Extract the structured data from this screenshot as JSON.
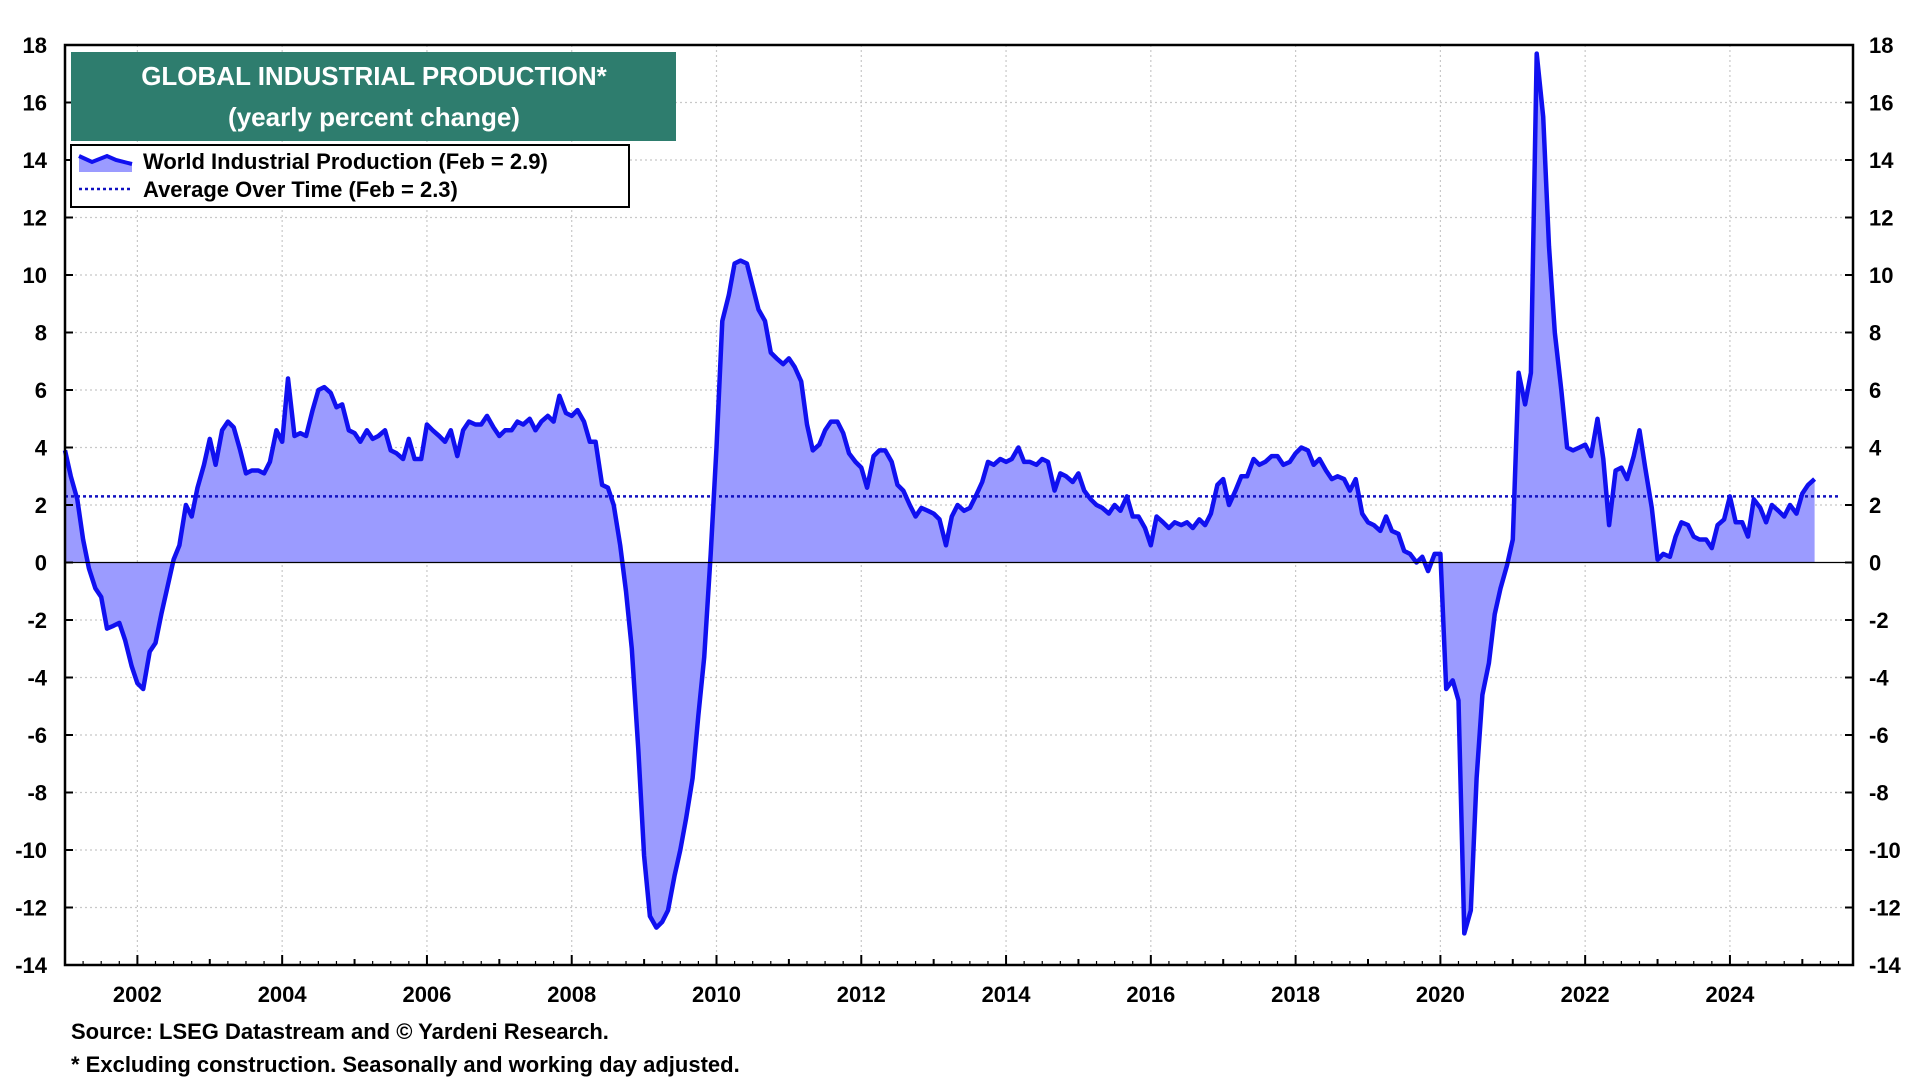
{
  "chart_data": {
    "type": "area",
    "title": "GLOBAL INDUSTRIAL PRODUCTION*",
    "subtitle": "(yearly percent change)",
    "ylim": [
      -14,
      18
    ],
    "y_ticks": [
      18,
      16,
      14,
      12,
      10,
      8,
      6,
      4,
      2,
      0,
      -2,
      -4,
      -6,
      -8,
      -10,
      -12,
      -14
    ],
    "xlim": [
      2001.0,
      2025.7
    ],
    "x_ticks": [
      2002,
      2004,
      2006,
      2008,
      2010,
      2012,
      2014,
      2016,
      2018,
      2020,
      2022,
      2024
    ],
    "grid": true,
    "legend_position": "top-left",
    "colors": {
      "series": "#1010f0",
      "fill": "#9b9bff",
      "average": "#1010c0",
      "title_box": "#2e7d6e",
      "title_text": "#ffffff"
    },
    "legend": [
      {
        "label": "World Industrial Production (Feb = 2.9)"
      },
      {
        "label": "Average Over Time (Feb = 2.3)"
      }
    ],
    "average": 2.3,
    "series": [
      {
        "name": "World Industrial Production (Feb = 2.9)",
        "points": [
          [
            2001.0,
            3.9
          ],
          [
            2001.08,
            3.0
          ],
          [
            2001.17,
            2.2
          ],
          [
            2001.25,
            0.8
          ],
          [
            2001.33,
            -0.2
          ],
          [
            2001.42,
            -0.9
          ],
          [
            2001.5,
            -1.2
          ],
          [
            2001.58,
            -2.3
          ],
          [
            2001.67,
            -2.2
          ],
          [
            2001.75,
            -2.1
          ],
          [
            2001.83,
            -2.7
          ],
          [
            2001.92,
            -3.6
          ],
          [
            2002.0,
            -4.2
          ],
          [
            2002.08,
            -4.4
          ],
          [
            2002.17,
            -3.1
          ],
          [
            2002.25,
            -2.8
          ],
          [
            2002.33,
            -1.8
          ],
          [
            2002.42,
            -0.8
          ],
          [
            2002.5,
            0.1
          ],
          [
            2002.58,
            0.6
          ],
          [
            2002.67,
            2.0
          ],
          [
            2002.75,
            1.6
          ],
          [
            2002.83,
            2.6
          ],
          [
            2002.92,
            3.4
          ],
          [
            2003.0,
            4.3
          ],
          [
            2003.08,
            3.4
          ],
          [
            2003.17,
            4.6
          ],
          [
            2003.25,
            4.9
          ],
          [
            2003.33,
            4.7
          ],
          [
            2003.42,
            3.9
          ],
          [
            2003.5,
            3.1
          ],
          [
            2003.58,
            3.2
          ],
          [
            2003.67,
            3.2
          ],
          [
            2003.75,
            3.1
          ],
          [
            2003.83,
            3.5
          ],
          [
            2003.92,
            4.6
          ],
          [
            2004.0,
            4.2
          ],
          [
            2004.08,
            6.4
          ],
          [
            2004.17,
            4.4
          ],
          [
            2004.25,
            4.5
          ],
          [
            2004.33,
            4.4
          ],
          [
            2004.42,
            5.3
          ],
          [
            2004.5,
            6.0
          ],
          [
            2004.58,
            6.1
          ],
          [
            2004.67,
            5.9
          ],
          [
            2004.75,
            5.4
          ],
          [
            2004.83,
            5.5
          ],
          [
            2004.92,
            4.6
          ],
          [
            2005.0,
            4.5
          ],
          [
            2005.08,
            4.2
          ],
          [
            2005.17,
            4.6
          ],
          [
            2005.25,
            4.3
          ],
          [
            2005.33,
            4.4
          ],
          [
            2005.42,
            4.6
          ],
          [
            2005.5,
            3.9
          ],
          [
            2005.58,
            3.8
          ],
          [
            2005.67,
            3.6
          ],
          [
            2005.75,
            4.3
          ],
          [
            2005.83,
            3.6
          ],
          [
            2005.92,
            3.6
          ],
          [
            2006.0,
            4.8
          ],
          [
            2006.08,
            4.6
          ],
          [
            2006.17,
            4.4
          ],
          [
            2006.25,
            4.2
          ],
          [
            2006.33,
            4.6
          ],
          [
            2006.42,
            3.7
          ],
          [
            2006.5,
            4.6
          ],
          [
            2006.58,
            4.9
          ],
          [
            2006.67,
            4.8
          ],
          [
            2006.75,
            4.8
          ],
          [
            2006.83,
            5.1
          ],
          [
            2006.92,
            4.7
          ],
          [
            2007.0,
            4.4
          ],
          [
            2007.08,
            4.6
          ],
          [
            2007.17,
            4.6
          ],
          [
            2007.25,
            4.9
          ],
          [
            2007.33,
            4.8
          ],
          [
            2007.42,
            5.0
          ],
          [
            2007.5,
            4.6
          ],
          [
            2007.58,
            4.9
          ],
          [
            2007.67,
            5.1
          ],
          [
            2007.75,
            4.9
          ],
          [
            2007.83,
            5.8
          ],
          [
            2007.92,
            5.2
          ],
          [
            2008.0,
            5.1
          ],
          [
            2008.08,
            5.3
          ],
          [
            2008.17,
            4.9
          ],
          [
            2008.25,
            4.2
          ],
          [
            2008.33,
            4.2
          ],
          [
            2008.42,
            2.7
          ],
          [
            2008.5,
            2.6
          ],
          [
            2008.58,
            2.0
          ],
          [
            2008.67,
            0.6
          ],
          [
            2008.75,
            -1.0
          ],
          [
            2008.83,
            -3.0
          ],
          [
            2008.92,
            -6.5
          ],
          [
            2009.0,
            -10.2
          ],
          [
            2009.08,
            -12.3
          ],
          [
            2009.17,
            -12.7
          ],
          [
            2009.25,
            -12.5
          ],
          [
            2009.33,
            -12.1
          ],
          [
            2009.42,
            -10.9
          ],
          [
            2009.5,
            -10.0
          ],
          [
            2009.58,
            -8.9
          ],
          [
            2009.67,
            -7.5
          ],
          [
            2009.75,
            -5.3
          ],
          [
            2009.83,
            -3.3
          ],
          [
            2009.92,
            0.3
          ],
          [
            2010.0,
            4.0
          ],
          [
            2010.08,
            8.4
          ],
          [
            2010.17,
            9.3
          ],
          [
            2010.25,
            10.4
          ],
          [
            2010.33,
            10.5
          ],
          [
            2010.42,
            10.4
          ],
          [
            2010.5,
            9.6
          ],
          [
            2010.58,
            8.8
          ],
          [
            2010.67,
            8.4
          ],
          [
            2010.75,
            7.3
          ],
          [
            2010.83,
            7.1
          ],
          [
            2010.92,
            6.9
          ],
          [
            2011.0,
            7.1
          ],
          [
            2011.08,
            6.8
          ],
          [
            2011.17,
            6.3
          ],
          [
            2011.25,
            4.8
          ],
          [
            2011.33,
            3.9
          ],
          [
            2011.42,
            4.1
          ],
          [
            2011.5,
            4.6
          ],
          [
            2011.58,
            4.9
          ],
          [
            2011.67,
            4.9
          ],
          [
            2011.75,
            4.5
          ],
          [
            2011.83,
            3.8
          ],
          [
            2011.92,
            3.5
          ],
          [
            2012.0,
            3.3
          ],
          [
            2012.08,
            2.6
          ],
          [
            2012.17,
            3.7
          ],
          [
            2012.25,
            3.9
          ],
          [
            2012.33,
            3.9
          ],
          [
            2012.42,
            3.5
          ],
          [
            2012.5,
            2.7
          ],
          [
            2012.58,
            2.5
          ],
          [
            2012.67,
            2.0
          ],
          [
            2012.75,
            1.6
          ],
          [
            2012.83,
            1.9
          ],
          [
            2012.92,
            1.8
          ],
          [
            2013.0,
            1.7
          ],
          [
            2013.08,
            1.5
          ],
          [
            2013.17,
            0.6
          ],
          [
            2013.25,
            1.6
          ],
          [
            2013.33,
            2.0
          ],
          [
            2013.42,
            1.8
          ],
          [
            2013.5,
            1.9
          ],
          [
            2013.58,
            2.3
          ],
          [
            2013.67,
            2.8
          ],
          [
            2013.75,
            3.5
          ],
          [
            2013.83,
            3.4
          ],
          [
            2013.92,
            3.6
          ],
          [
            2014.0,
            3.5
          ],
          [
            2014.08,
            3.6
          ],
          [
            2014.17,
            4.0
          ],
          [
            2014.25,
            3.5
          ],
          [
            2014.33,
            3.5
          ],
          [
            2014.42,
            3.4
          ],
          [
            2014.5,
            3.6
          ],
          [
            2014.58,
            3.5
          ],
          [
            2014.67,
            2.5
          ],
          [
            2014.75,
            3.1
          ],
          [
            2014.83,
            3.0
          ],
          [
            2014.92,
            2.8
          ],
          [
            2015.0,
            3.1
          ],
          [
            2015.08,
            2.5
          ],
          [
            2015.17,
            2.2
          ],
          [
            2015.25,
            2.0
          ],
          [
            2015.33,
            1.9
          ],
          [
            2015.42,
            1.7
          ],
          [
            2015.5,
            2.0
          ],
          [
            2015.58,
            1.8
          ],
          [
            2015.67,
            2.3
          ],
          [
            2015.75,
            1.6
          ],
          [
            2015.83,
            1.6
          ],
          [
            2015.92,
            1.2
          ],
          [
            2016.0,
            0.6
          ],
          [
            2016.08,
            1.6
          ],
          [
            2016.17,
            1.4
          ],
          [
            2016.25,
            1.2
          ],
          [
            2016.33,
            1.4
          ],
          [
            2016.42,
            1.3
          ],
          [
            2016.5,
            1.4
          ],
          [
            2016.58,
            1.2
          ],
          [
            2016.67,
            1.5
          ],
          [
            2016.75,
            1.3
          ],
          [
            2016.83,
            1.7
          ],
          [
            2016.92,
            2.7
          ],
          [
            2017.0,
            2.9
          ],
          [
            2017.08,
            2.0
          ],
          [
            2017.17,
            2.5
          ],
          [
            2017.25,
            3.0
          ],
          [
            2017.33,
            3.0
          ],
          [
            2017.42,
            3.6
          ],
          [
            2017.5,
            3.4
          ],
          [
            2017.58,
            3.5
          ],
          [
            2017.67,
            3.7
          ],
          [
            2017.75,
            3.7
          ],
          [
            2017.83,
            3.4
          ],
          [
            2017.92,
            3.5
          ],
          [
            2018.0,
            3.8
          ],
          [
            2018.08,
            4.0
          ],
          [
            2018.17,
            3.9
          ],
          [
            2018.25,
            3.4
          ],
          [
            2018.33,
            3.6
          ],
          [
            2018.42,
            3.2
          ],
          [
            2018.5,
            2.9
          ],
          [
            2018.58,
            3.0
          ],
          [
            2018.67,
            2.9
          ],
          [
            2018.75,
            2.5
          ],
          [
            2018.83,
            2.9
          ],
          [
            2018.92,
            1.7
          ],
          [
            2019.0,
            1.4
          ],
          [
            2019.08,
            1.3
          ],
          [
            2019.17,
            1.1
          ],
          [
            2019.25,
            1.6
          ],
          [
            2019.33,
            1.1
          ],
          [
            2019.42,
            1.0
          ],
          [
            2019.5,
            0.4
          ],
          [
            2019.58,
            0.3
          ],
          [
            2019.67,
            0.0
          ],
          [
            2019.75,
            0.2
          ],
          [
            2019.83,
            -0.3
          ],
          [
            2019.92,
            0.3
          ],
          [
            2020.0,
            0.3
          ],
          [
            2020.08,
            -4.4
          ],
          [
            2020.17,
            -4.1
          ],
          [
            2020.25,
            -4.8
          ],
          [
            2020.33,
            -12.9
          ],
          [
            2020.42,
            -12.1
          ],
          [
            2020.5,
            -7.5
          ],
          [
            2020.58,
            -4.6
          ],
          [
            2020.67,
            -3.5
          ],
          [
            2020.75,
            -1.8
          ],
          [
            2020.83,
            -0.9
          ],
          [
            2020.92,
            -0.1
          ],
          [
            2021.0,
            0.8
          ],
          [
            2021.08,
            6.6
          ],
          [
            2021.17,
            5.5
          ],
          [
            2021.25,
            6.6
          ],
          [
            2021.33,
            17.7
          ],
          [
            2021.42,
            15.5
          ],
          [
            2021.5,
            11.0
          ],
          [
            2021.58,
            8.0
          ],
          [
            2021.67,
            6.0
          ],
          [
            2021.75,
            4.0
          ],
          [
            2021.83,
            3.9
          ],
          [
            2021.92,
            4.0
          ],
          [
            2022.0,
            4.1
          ],
          [
            2022.08,
            3.7
          ],
          [
            2022.17,
            5.0
          ],
          [
            2022.25,
            3.6
          ],
          [
            2022.33,
            1.3
          ],
          [
            2022.42,
            3.2
          ],
          [
            2022.5,
            3.3
          ],
          [
            2022.58,
            2.9
          ],
          [
            2022.67,
            3.7
          ],
          [
            2022.75,
            4.6
          ],
          [
            2022.83,
            3.3
          ],
          [
            2022.92,
            1.9
          ],
          [
            2023.0,
            0.1
          ],
          [
            2023.08,
            0.3
          ],
          [
            2023.17,
            0.2
          ],
          [
            2023.25,
            0.9
          ],
          [
            2023.33,
            1.4
          ],
          [
            2023.42,
            1.3
          ],
          [
            2023.5,
            0.9
          ],
          [
            2023.58,
            0.8
          ],
          [
            2023.67,
            0.8
          ],
          [
            2023.75,
            0.5
          ],
          [
            2023.83,
            1.3
          ],
          [
            2023.92,
            1.5
          ],
          [
            2024.0,
            2.3
          ],
          [
            2024.08,
            1.4
          ],
          [
            2024.17,
            1.4
          ],
          [
            2024.25,
            0.9
          ],
          [
            2024.33,
            2.2
          ],
          [
            2024.42,
            1.9
          ],
          [
            2024.5,
            1.4
          ],
          [
            2024.58,
            2.0
          ],
          [
            2024.67,
            1.8
          ],
          [
            2024.75,
            1.6
          ],
          [
            2024.83,
            2.0
          ],
          [
            2024.92,
            1.7
          ],
          [
            2025.0,
            2.4
          ],
          [
            2025.08,
            2.7
          ],
          [
            2025.17,
            2.9
          ]
        ]
      },
      {
        "name": "Average Over Time (Feb = 2.3)",
        "points": [
          [
            2001.0,
            2.3
          ],
          [
            2025.5,
            2.3
          ]
        ]
      }
    ],
    "notes": [
      "Source: LSEG Datastream and © Yardeni Research.",
      "* Excluding construction. Seasonally and working day adjusted."
    ]
  }
}
